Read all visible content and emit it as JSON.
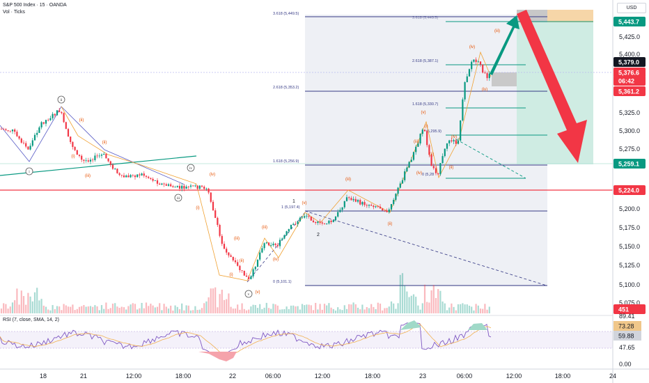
{
  "header": {
    "symbol_line": "S&P 500 Index · 15 · OANDA",
    "volume_line": "Vol · Ticks",
    "currency": "USD"
  },
  "price_axis": {
    "ticks": [
      "5,425.0",
      "5,400.0",
      "5,325.0",
      "5,300.0",
      "5,275.0",
      "5,200.0",
      "5,175.0",
      "5,150.0",
      "5,125.0",
      "5,100.0",
      "5,075.0"
    ],
    "badges": [
      {
        "name": "target-price",
        "text": "5,443.7",
        "color": "#089981"
      },
      {
        "name": "current-price",
        "text": "5,379.0",
        "color": "#131722"
      },
      {
        "name": "last-price",
        "text": "5,376.6",
        "color": "#f23645"
      },
      {
        "name": "countdown",
        "text": "06:42",
        "color": "#f23645"
      },
      {
        "name": "stop-price",
        "text": "5,361.2",
        "color": "#f23645"
      },
      {
        "name": "zone-bottom-price",
        "text": "5,259.1",
        "color": "#089981"
      },
      {
        "name": "support-price",
        "text": "5,224.0",
        "color": "#f23645"
      },
      {
        "name": "volume-value",
        "text": "451",
        "color": "#f23645"
      }
    ]
  },
  "time_axis": [
    "18",
    "21",
    "12:00",
    "18:00",
    "22",
    "06:00",
    "12:00",
    "18:00",
    "23",
    "06:00",
    "12:00",
    "18:00",
    "24"
  ],
  "fib_levels": [
    {
      "label": "3.618 (5,449.5)",
      "dim": false
    },
    {
      "label": "3.618 (5,449.5)",
      "dim": true
    },
    {
      "label": "2.618 (5,387.1)",
      "dim": false
    },
    {
      "label": "2.618 (5,353.2)",
      "dim": false
    },
    {
      "label": "1.618 (5,330.7)",
      "dim": false
    },
    {
      "label": "1.618 (5,256.9)",
      "dim": false
    },
    {
      "label": "1 (5,197.4)",
      "dim": false
    },
    {
      "label": "0 (5,101.1)",
      "dim": false
    },
    {
      "label": "(5,295.9)",
      "dim": false
    },
    {
      "label": "0 (5,28",
      "dim": false
    }
  ],
  "wave_labels": {
    "circled": [
      "ii",
      "i",
      "iii",
      "iv",
      "v"
    ],
    "red": [
      "(ii)",
      "(i)",
      "(iii)",
      "(ii)",
      "(i)",
      "(iv)",
      "(iii)",
      "(i)",
      "(ii)",
      "(v)",
      "(iv)",
      "(iii)",
      "(v)",
      "(iii)",
      "(ii)",
      "(ii)",
      "(iv)",
      "(i)",
      "(iii)",
      "(ii)",
      "(v)",
      "(iv)",
      "(iii)",
      "(iv)",
      "(iv)"
    ],
    "black": [
      "1",
      "2"
    ]
  },
  "rsi": {
    "label": "RSI (7, close, SMA, 14, 2)",
    "ticks": [
      "89.41",
      "47.65",
      "0.00"
    ],
    "badges": [
      {
        "name": "rsi-value",
        "text": "73.28",
        "color": "#f0c78a"
      },
      {
        "name": "rsi-sma-value",
        "text": "59.88",
        "color": "#d1d4dc"
      }
    ]
  },
  "colors": {
    "up": "#089981",
    "down": "#f23645",
    "fib_line": "#363a85",
    "zone_green": "#089981",
    "rsi_line": "#7e57c2"
  }
}
